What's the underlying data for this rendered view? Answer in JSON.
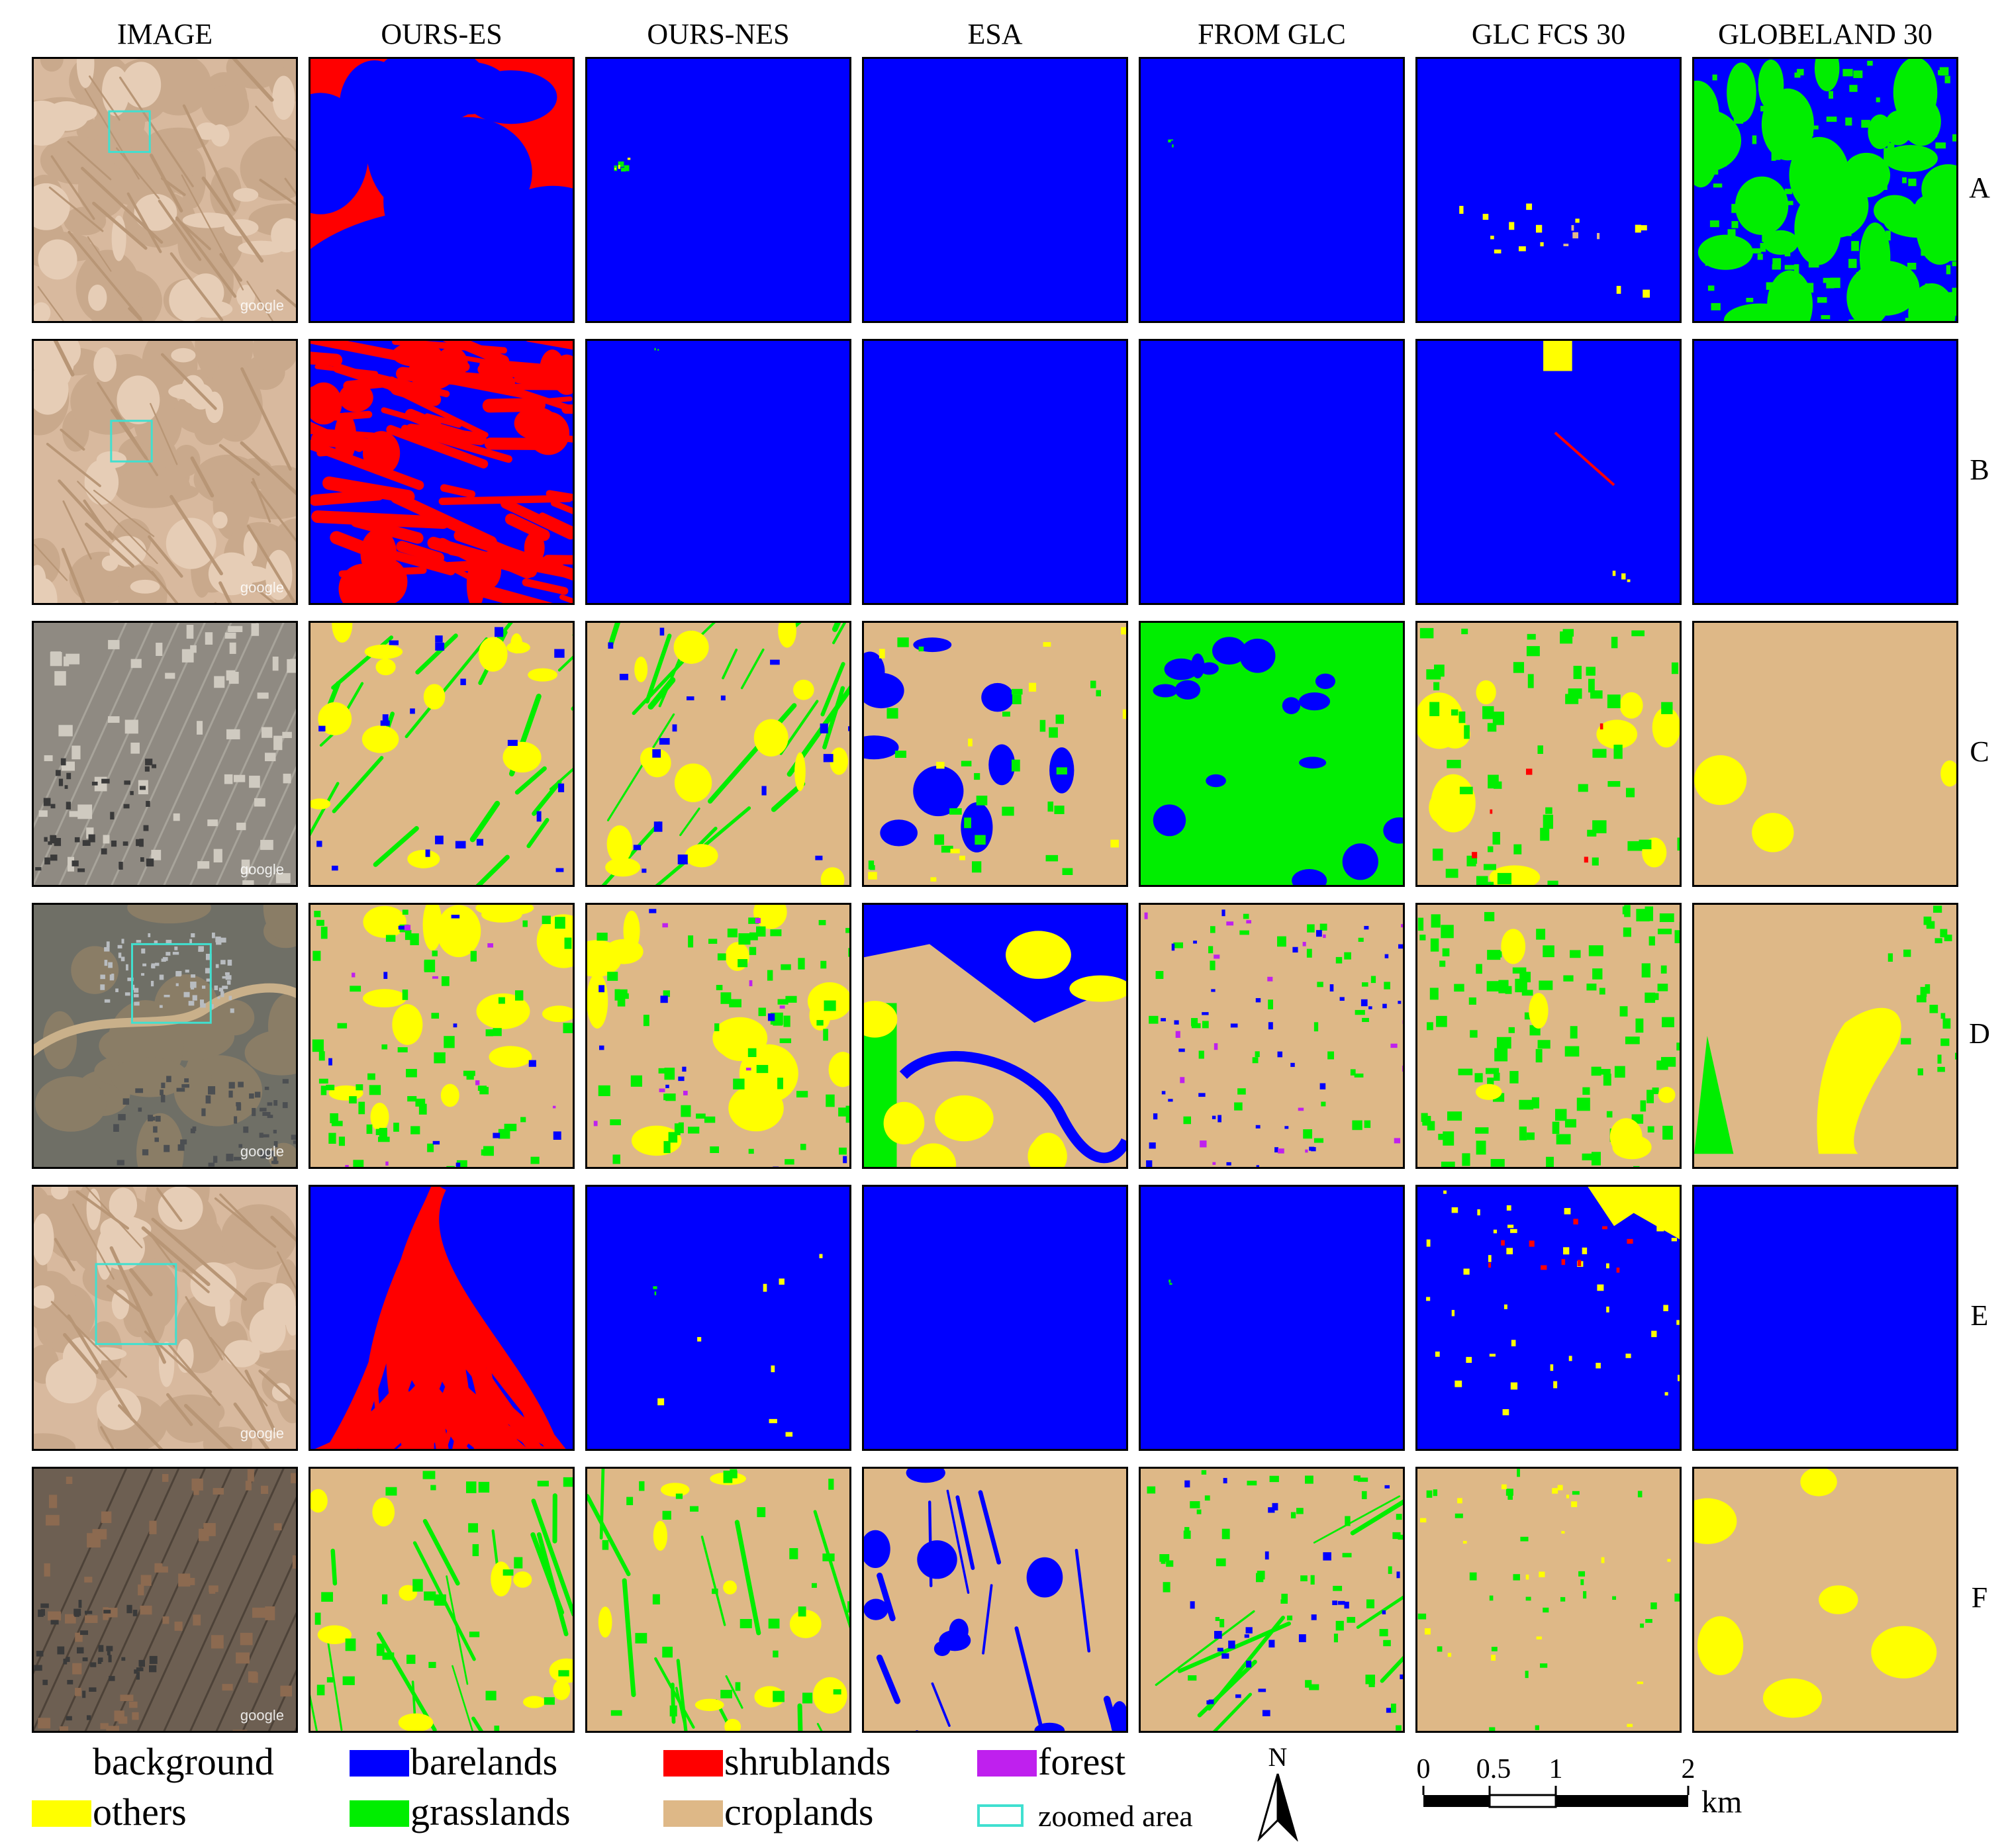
{
  "columns": [
    "IMAGE",
    "OURS-ES",
    "OURS-NES",
    "ESA",
    "FROM GLC",
    "GLC FCS 30",
    "GLOBELAND 30"
  ],
  "rows": [
    "A",
    "B",
    "C",
    "D",
    "E",
    "F"
  ],
  "watermark": "google",
  "colors": {
    "background": "#ffffff",
    "barelands": "#0000ff",
    "shrublands": "#ff0000",
    "forest": "#bf20ee",
    "others": "#ffff00",
    "grasslands": "#00ee00",
    "croplands": "#deb887",
    "zoomed_area": "#40e0d0"
  },
  "legend": {
    "background": "background",
    "barelands": "barelands",
    "shrublands": "shrublands",
    "forest": "forest",
    "others": "others",
    "grasslands": "grasslands",
    "croplands": "croplands",
    "zoomed_area": "zoomed area"
  },
  "north_label": "N",
  "scale": {
    "ticks": [
      "0",
      "0.5",
      "1",
      "2"
    ],
    "unit": "km"
  }
}
